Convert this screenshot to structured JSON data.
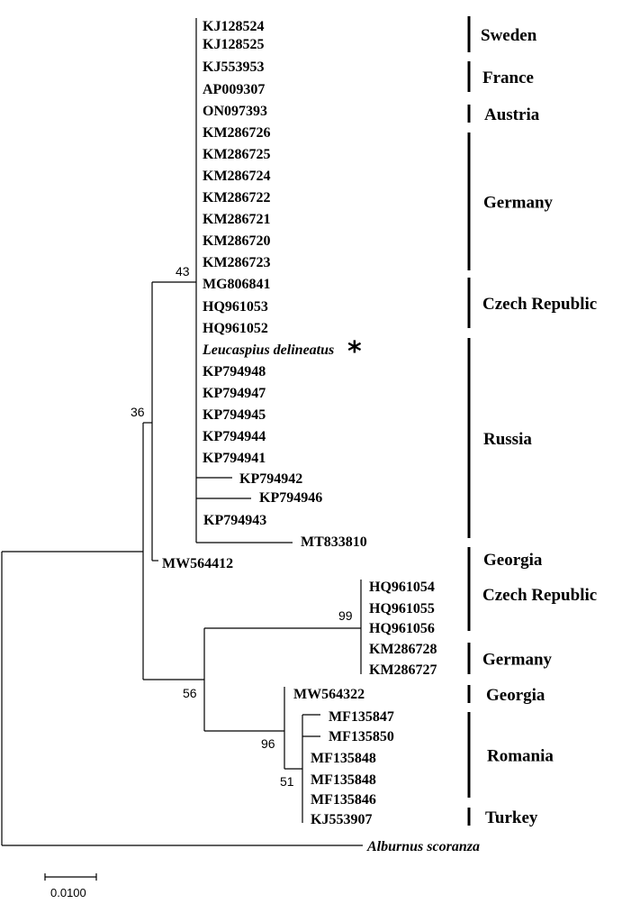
{
  "leaves": [
    "KJ128524",
    "KJ128525",
    "KJ553953",
    "AP009307",
    "ON097393",
    "KM286726",
    "KM286725",
    "KM286724",
    "KM286722",
    "KM286721",
    "KM286720",
    "KM286723",
    "MG806841",
    "HQ961053",
    "HQ961052",
    "Leucaspius delineatus",
    "KP794948",
    "KP794947",
    "KP794945",
    "KP794944",
    "KP794941",
    "KP794942",
    "KP794946",
    "KP794943",
    "MT833810",
    "MW564412",
    "HQ961054",
    "HQ961055",
    "HQ961056",
    "KM286728",
    "KM286727",
    "MW564322",
    "MF135847",
    "MF135850",
    "MF135848",
    "MF135848",
    "MF135846",
    "KJ553907",
    "Alburnus scoranza"
  ],
  "study_marker": "*",
  "groups": [
    "Sweden",
    "France",
    "Austria",
    "Germany",
    "Czech Republic",
    "Russia",
    "Georgia",
    "Czech Republic",
    "Germany",
    "Georgia",
    "Romania",
    "Turkey"
  ],
  "bootstrap": {
    "n43": "43",
    "n36": "36",
    "n56": "56",
    "n99": "99",
    "n96": "96",
    "n51": "51"
  },
  "scale_bar": "0.0100"
}
